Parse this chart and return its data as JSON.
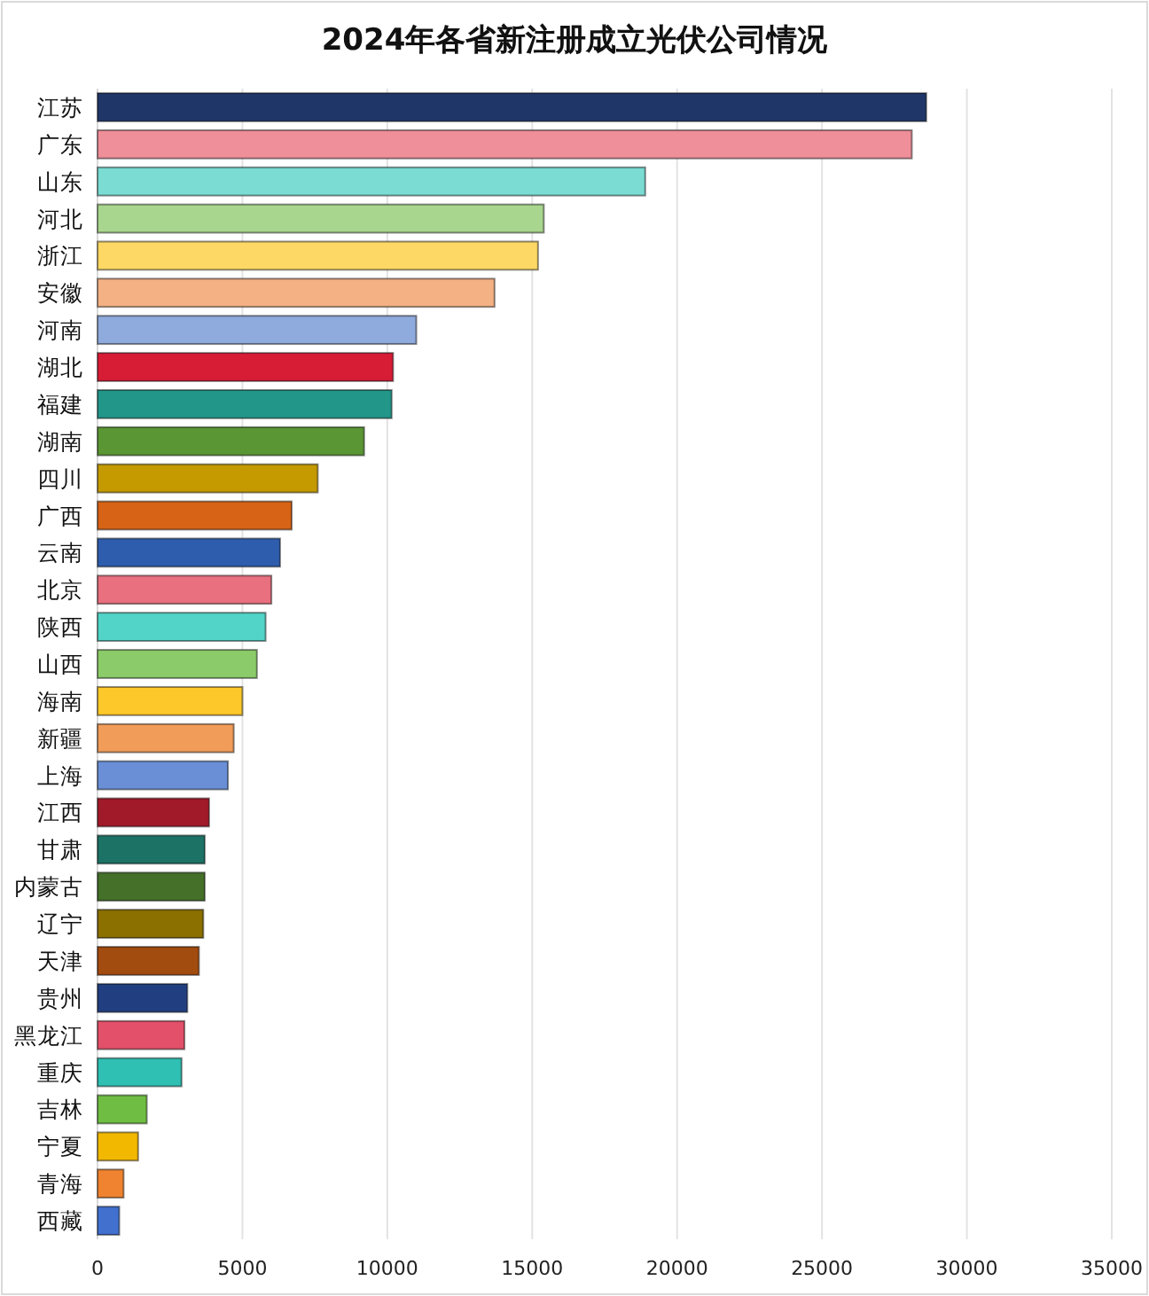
{
  "chart_data": {
    "type": "bar",
    "orientation": "horizontal",
    "title": "2024年各省新注册成立光伏公司情况",
    "categories": [
      "江苏",
      "广东",
      "山东",
      "河北",
      "浙江",
      "安徽",
      "河南",
      "湖北",
      "福建",
      "湖南",
      "四川",
      "广西",
      "云南",
      "北京",
      "陕西",
      "山西",
      "海南",
      "新疆",
      "上海",
      "江西",
      "甘肃",
      "内蒙古",
      "辽宁",
      "天津",
      "贵州",
      "黑龙江",
      "重庆",
      "吉林",
      "宁夏",
      "青海",
      "西藏"
    ],
    "values": [
      28600,
      28100,
      18900,
      15400,
      15200,
      13700,
      11000,
      10200,
      10150,
      9200,
      7600,
      6700,
      6300,
      6000,
      5800,
      5500,
      5000,
      4700,
      4500,
      3850,
      3700,
      3700,
      3650,
      3500,
      3100,
      3000,
      2900,
      1700,
      1400,
      900,
      750
    ],
    "colors": [
      "#1f3668",
      "#ef8f9a",
      "#7bdcd3",
      "#a9d68e",
      "#fdd865",
      "#f4b183",
      "#8faadc",
      "#d71c36",
      "#23968a",
      "#5a9634",
      "#c49a00",
      "#d66316",
      "#2f5dae",
      "#e8707f",
      "#52d4c8",
      "#8ccb69",
      "#fdc92a",
      "#f19c59",
      "#6a8fd6",
      "#a11a2a",
      "#1c7265",
      "#44702a",
      "#8b7000",
      "#a34c10",
      "#213f80",
      "#e35069",
      "#2fc0b3",
      "#6fbe43",
      "#f2b800",
      "#ef8330",
      "#4170cf"
    ],
    "xlim": [
      0,
      35000
    ],
    "xticks": [
      0,
      5000,
      10000,
      15000,
      20000,
      25000,
      30000,
      35000
    ],
    "grid": "x"
  }
}
